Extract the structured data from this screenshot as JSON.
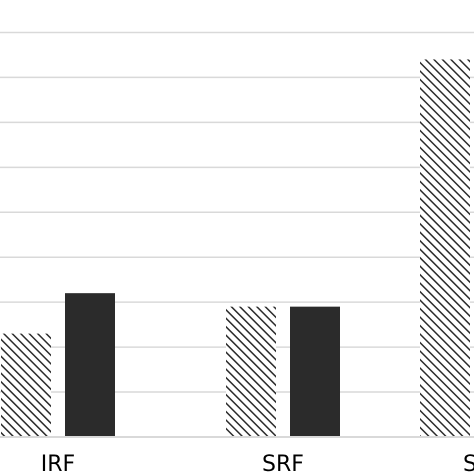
{
  "chart_data": {
    "type": "bar",
    "title": "",
    "xlabel": "",
    "ylabel": "",
    "categories": [
      "IRF",
      "SRF",
      "Su"
    ],
    "series": [
      {
        "name": "",
        "pattern": "hatched",
        "values": [
          2.3,
          2.9,
          8.4
        ]
      },
      {
        "name": "",
        "pattern": "solid",
        "values": [
          3.2,
          2.9,
          null
        ]
      }
    ],
    "ylim": [
      0,
      9.5
    ],
    "grid": true,
    "colors": {
      "solid": "#2b2b2b",
      "hatch_stroke": "#2b2b2b",
      "hatch_bg": "#ffffff",
      "grid": "#d9d9d9"
    }
  }
}
